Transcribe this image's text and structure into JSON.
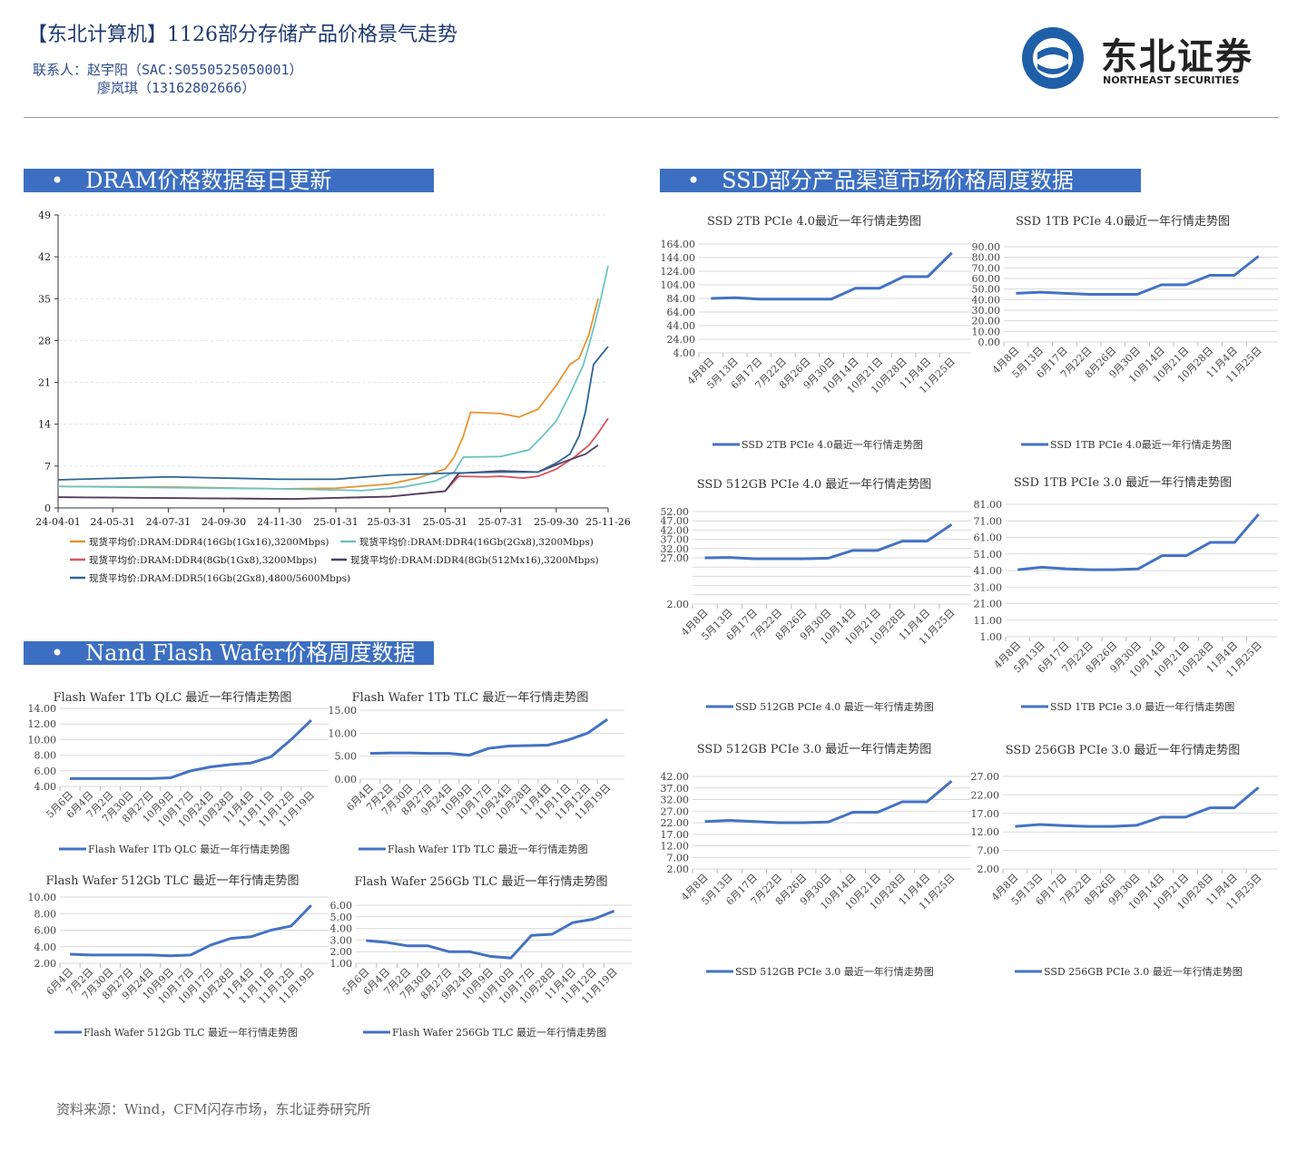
{
  "header": {
    "title": "【东北计算机】1126部分存储产品价格景气走势",
    "contact_line1": "联系人：赵宇阳（SAC:S0550525050001）",
    "contact_line2": "廖岚琪（13162802666）"
  },
  "logo": {
    "cn": "东北证券",
    "en": "NORTHEAST SECURITIES",
    "icon": "northeast-securities-logo"
  },
  "sections": {
    "dram": "DRAM价格数据每日更新",
    "ssd": "SSD部分产品渠道市场价格周度数据",
    "nand": "Nand Flash Wafer价格周度数据",
    "bullet": "•"
  },
  "footer": {
    "source": "资料来源：Wind，CFM闪存市场，东北证券研究所"
  },
  "colors": {
    "banner": "#3c6fc2",
    "line": "#4472c4"
  },
  "chart_data": [
    {
      "id": "dram",
      "type": "line",
      "title": "",
      "ylim": [
        0,
        49
      ],
      "yticks": [
        0,
        7,
        14,
        21,
        28,
        35,
        42,
        49
      ],
      "xticks": [
        "24-04-01",
        "24-05-31",
        "24-07-31",
        "24-09-30",
        "24-11-30",
        "25-01-31",
        "25-03-31",
        "25-05-31",
        "25-07-31",
        "25-09-30",
        "25-11-26"
      ],
      "xlim": [
        "24-04-01",
        "25-11-26"
      ],
      "grid": true,
      "legend": "bottom",
      "series": [
        {
          "name": "现货平均价:DRAM:DDR4(16Gb(1Gx16),3200Mbps)",
          "color": "#e8922f",
          "points": [
            [
              "24-04-01",
              3.6
            ],
            [
              "24-07-31",
              3.5
            ],
            [
              "24-11-30",
              3.2
            ],
            [
              "25-01-31",
              3.3
            ],
            [
              "25-03-31",
              4.0
            ],
            [
              "25-05-01",
              5.0
            ],
            [
              "25-05-31",
              6.5
            ],
            [
              "25-06-10",
              8.5
            ],
            [
              "25-06-20",
              12
            ],
            [
              "25-06-28",
              16
            ],
            [
              "25-07-31",
              15.8
            ],
            [
              "25-08-20",
              15.2
            ],
            [
              "25-09-10",
              16.5
            ],
            [
              "25-09-30",
              20.5
            ],
            [
              "25-10-15",
              24
            ],
            [
              "25-10-25",
              25
            ],
            [
              "25-11-05",
              29
            ],
            [
              "25-11-15",
              35
            ]
          ]
        },
        {
          "name": "现货平均价:DRAM:DDR4(16Gb(2Gx8),3200Mbps)",
          "color": "#6cc3c1",
          "points": [
            [
              "24-04-01",
              3.6
            ],
            [
              "24-11-30",
              3.2
            ],
            [
              "25-03-01",
              2.9
            ],
            [
              "25-04-15",
              3.5
            ],
            [
              "25-05-20",
              4.5
            ],
            [
              "25-06-10",
              6
            ],
            [
              "25-06-20",
              8.5
            ],
            [
              "25-07-31",
              8.6
            ],
            [
              "25-08-31",
              9.7
            ],
            [
              "25-09-15",
              12
            ],
            [
              "25-09-30",
              14.5
            ],
            [
              "25-10-15",
              19
            ],
            [
              "25-10-30",
              24
            ],
            [
              "25-11-10",
              30
            ],
            [
              "25-11-18",
              35
            ],
            [
              "25-11-26",
              40.5
            ]
          ]
        },
        {
          "name": "现货平均价:DRAM:DDR4(8Gb(1Gx8),3200Mbps)",
          "color": "#d9545a",
          "points": [
            [
              "24-04-01",
              1.8
            ],
            [
              "24-12-15",
              1.5
            ],
            [
              "25-03-31",
              1.9
            ],
            [
              "25-05-31",
              2.8
            ],
            [
              "25-06-15",
              5.3
            ],
            [
              "25-07-15",
              5.2
            ],
            [
              "25-07-31",
              5.3
            ],
            [
              "25-08-25",
              5.0
            ],
            [
              "25-09-10",
              5.3
            ],
            [
              "25-09-30",
              6.5
            ],
            [
              "25-10-20",
              8.5
            ],
            [
              "25-11-05",
              10.5
            ],
            [
              "25-11-15",
              12.5
            ],
            [
              "25-11-26",
              15
            ]
          ]
        },
        {
          "name": "现货平均价:DRAM:DDR4(8Gb(512Mx16),3200Mbps)",
          "color": "#4a3f63",
          "points": [
            [
              "24-04-01",
              1.8
            ],
            [
              "24-12-15",
              1.5
            ],
            [
              "25-03-31",
              1.9
            ],
            [
              "25-05-31",
              2.8
            ],
            [
              "25-06-15",
              5.8
            ],
            [
              "25-07-31",
              6.2
            ],
            [
              "25-09-10",
              6.0
            ],
            [
              "25-10-10",
              7.8
            ],
            [
              "25-11-01",
              9
            ],
            [
              "25-11-15",
              10.5
            ]
          ]
        },
        {
          "name": "现货平均价:DRAM:DDR5(16Gb(2Gx8),4800/5600Mbps)",
          "color": "#2e6496",
          "points": [
            [
              "24-04-01",
              4.7
            ],
            [
              "24-07-31",
              5.2
            ],
            [
              "24-11-30",
              4.8
            ],
            [
              "25-01-31",
              4.8
            ],
            [
              "25-03-31",
              5.5
            ],
            [
              "25-05-31",
              5.8
            ],
            [
              "25-07-31",
              6.0
            ],
            [
              "25-09-10",
              6.0
            ],
            [
              "25-09-30",
              7.5
            ],
            [
              "25-10-15",
              9
            ],
            [
              "25-10-25",
              12
            ],
            [
              "25-11-01",
              16
            ],
            [
              "25-11-10",
              24
            ],
            [
              "25-11-26",
              27
            ]
          ]
        }
      ]
    },
    {
      "id": "ssd2tb4",
      "type": "line",
      "title": "SSD 2TB PCIe 4.0最近一年行情走势图",
      "series_name": "SSD 2TB PCIe 4.0最近一年行情走势图",
      "ylim": [
        4,
        164
      ],
      "ystep": 20,
      "yticks": [
        "4.00",
        "24.00",
        "44.00",
        "64.00",
        "84.00",
        "104.00",
        "124.00",
        "144.00",
        "164.00"
      ],
      "categories": [
        "4月8日",
        "5月13日",
        "6月17日",
        "7月22日",
        "8月26日",
        "9月30日",
        "10月14日",
        "10月21日",
        "10月28日",
        "11月4日",
        "11月25日"
      ],
      "values": [
        84,
        85,
        83,
        83,
        83,
        83,
        99,
        99,
        116,
        116,
        151
      ]
    },
    {
      "id": "ssd1tb4",
      "type": "line",
      "title": "SSD 1TB PCIe 4.0最近一年行情走势图",
      "series_name": "SSD 1TB PCIe 4.0最近一年行情走势图",
      "ylim": [
        0,
        90
      ],
      "ystep": 10,
      "yticks": [
        "0.00",
        "10.00",
        "20.00",
        "30.00",
        "40.00",
        "50.00",
        "60.00",
        "70.00",
        "80.00",
        "90.00"
      ],
      "categories": [
        "4月8日",
        "5月13日",
        "6月17日",
        "7月22日",
        "8月26日",
        "9月30日",
        "10月14日",
        "10月21日",
        "10月28日",
        "11月4日",
        "11月25日"
      ],
      "values": [
        46,
        47,
        46,
        45,
        45,
        45,
        54,
        54,
        63,
        63,
        81
      ]
    },
    {
      "id": "ssd512g4",
      "type": "line",
      "title": "SSD 512GB PCIe 4.0 最近一年行情走势图",
      "series_name": "SSD 512GB PCIe 4.0 最近一年行情走势图",
      "ylim": [
        2,
        52
      ],
      "ystep": 5,
      "yticks": [
        "2.00",
        "",
        "",
        "",
        "",
        "27.00",
        "32.00",
        "37.00",
        "42.00",
        "47.00",
        "52.00"
      ],
      "categories": [
        "4月8日",
        "5月13日",
        "6月17日",
        "7月22日",
        "8月26日",
        "9月30日",
        "10月14日",
        "10月21日",
        "10月28日",
        "11月4日",
        "11月25日"
      ],
      "values": [
        27,
        27.2,
        26.5,
        26.5,
        26.5,
        26.8,
        31,
        31,
        36,
        36,
        45
      ]
    },
    {
      "id": "ssd1tb3",
      "type": "line",
      "title": "SSD 1TB PCIe 3.0 最近一年行情走势图",
      "series_name": "SSD 1TB PCIe 3.0 最近一年行情走势图",
      "ylim": [
        1,
        81
      ],
      "ystep": 10,
      "yticks": [
        "1.00",
        "11.00",
        "21.00",
        "31.00",
        "41.00",
        "51.00",
        "61.00",
        "71.00",
        "81.00"
      ],
      "categories": [
        "4月8日",
        "5月13日",
        "6月17日",
        "7月22日",
        "8月26日",
        "9月30日",
        "10月14日",
        "10月21日",
        "10月28日",
        "11月4日",
        "11月25日"
      ],
      "values": [
        41.5,
        43,
        42,
        41.5,
        41.5,
        42,
        50,
        50,
        58,
        58,
        75
      ]
    },
    {
      "id": "ssd512g3",
      "type": "line",
      "title": "SSD 512GB PCIe 3.0 最近一年行情走势图",
      "series_name": "SSD 512GB PCIe 3.0 最近一年行情走势图",
      "ylim": [
        2,
        42
      ],
      "ystep": 5,
      "yticks": [
        "2.00",
        "7.00",
        "12.00",
        "17.00",
        "22.00",
        "27.00",
        "32.00",
        "37.00",
        "42.00"
      ],
      "categories": [
        "4月8日",
        "5月13日",
        "6月17日",
        "7月22日",
        "8月26日",
        "9月30日",
        "10月14日",
        "10月21日",
        "10月28日",
        "11月4日",
        "11月25日"
      ],
      "values": [
        22.5,
        23,
        22.5,
        22,
        22,
        22.3,
        26.5,
        26.5,
        31,
        31,
        40
      ]
    },
    {
      "id": "ssd256g3",
      "type": "line",
      "title": "SSD 256GB PCIe 3.0 最近一年行情走势图",
      "series_name": "SSD 256GB PCIe 3.0 最近一年行情走势图",
      "ylim": [
        2,
        27
      ],
      "ystep": 5,
      "yticks": [
        "2.00",
        "7.00",
        "12.00",
        "17.00",
        "22.00",
        "27.00"
      ],
      "categories": [
        "4月8日",
        "5月13日",
        "6月17日",
        "7月22日",
        "8月26日",
        "9月30日",
        "10月14日",
        "10月21日",
        "10月28日",
        "11月4日",
        "11月25日"
      ],
      "values": [
        13.5,
        14,
        13.7,
        13.5,
        13.5,
        13.8,
        16,
        16,
        18.5,
        18.5,
        24
      ]
    },
    {
      "id": "fw1tbqlc",
      "type": "line",
      "title": "Flash Wafer 1Tb QLC 最近一年行情走势图",
      "series_name": "Flash Wafer 1Tb QLC 最近一年行情走势图",
      "ylim": [
        4,
        14
      ],
      "ystep": 2,
      "yticks": [
        "4.00",
        "6.00",
        "8.00",
        "10.00",
        "12.00",
        "14.00"
      ],
      "categories": [
        "5月6日",
        "6月4日",
        "7月2日",
        "7月30日",
        "8月27日",
        "10月9日",
        "10月17日",
        "10月24日",
        "10月28日",
        "11月4日",
        "11月11日",
        "11月12日",
        "11月19日"
      ],
      "values": [
        5,
        5,
        5,
        5,
        5,
        5.1,
        6,
        6.5,
        6.8,
        7,
        7.8,
        10,
        12.5
      ]
    },
    {
      "id": "fw1tbtlc",
      "type": "line",
      "title": "Flash Wafer 1Tb TLC 最近一年行情走势图",
      "series_name": "Flash Wafer 1Tb TLC 最近一年行情走势图",
      "ylim": [
        0,
        15
      ],
      "ystep": 5,
      "yticks": [
        "0.00",
        "5.00",
        "10.00",
        "15.00"
      ],
      "categories": [
        "6月4日",
        "7月2日",
        "7月30日",
        "8月27日",
        "9月24日",
        "10月9日",
        "10月17日",
        "10月24日",
        "10月28日",
        "11月4日",
        "11月11日",
        "11月12日",
        "11月19日"
      ],
      "values": [
        5.6,
        5.7,
        5.7,
        5.6,
        5.6,
        5.2,
        6.7,
        7.2,
        7.3,
        7.4,
        8.5,
        10,
        13
      ]
    },
    {
      "id": "fw512tlc",
      "type": "line",
      "title": "Flash Wafer 512Gb TLC 最近一年行情走势图",
      "series_name": "Flash Wafer 512Gb TLC 最近一年行情走势图",
      "ylim": [
        2,
        10
      ],
      "ystep": 2,
      "yticks": [
        "2.00",
        "4.00",
        "6.00",
        "8.00",
        "10.00"
      ],
      "categories": [
        "6月4日",
        "7月2日",
        "7月30日",
        "8月27日",
        "9月24日",
        "10月9日",
        "10月17日",
        "10月17日",
        "10月28日",
        "11月4日",
        "11月11日",
        "11月12日",
        "11月19日"
      ],
      "values": [
        3.1,
        3,
        3,
        3,
        3,
        2.9,
        3,
        4.2,
        5,
        5.2,
        6,
        6.5,
        9
      ]
    },
    {
      "id": "fw256tlc",
      "type": "line",
      "title": "Flash Wafer 256Gb TLC 最近一年行情走势图",
      "series_name": "Flash Wafer 256Gb TLC 最近一年行情走势图",
      "ylim": [
        1,
        6
      ],
      "ystep": 1,
      "yticks": [
        "1.00",
        "2.00",
        "3.00",
        "4.00",
        "5.00",
        "6.00"
      ],
      "categories": [
        "5月6日",
        "6月4日",
        "7月2日",
        "7月30日",
        "8月27日",
        "9月24日",
        "10月9日",
        "10月10日",
        "10月17日",
        "10月28日",
        "11月4日",
        "11月12日",
        "11月19日"
      ],
      "values": [
        2.95,
        2.8,
        2.5,
        2.5,
        2.0,
        2.0,
        1.6,
        1.45,
        3.4,
        3.5,
        4.5,
        4.8,
        5.5
      ]
    }
  ]
}
